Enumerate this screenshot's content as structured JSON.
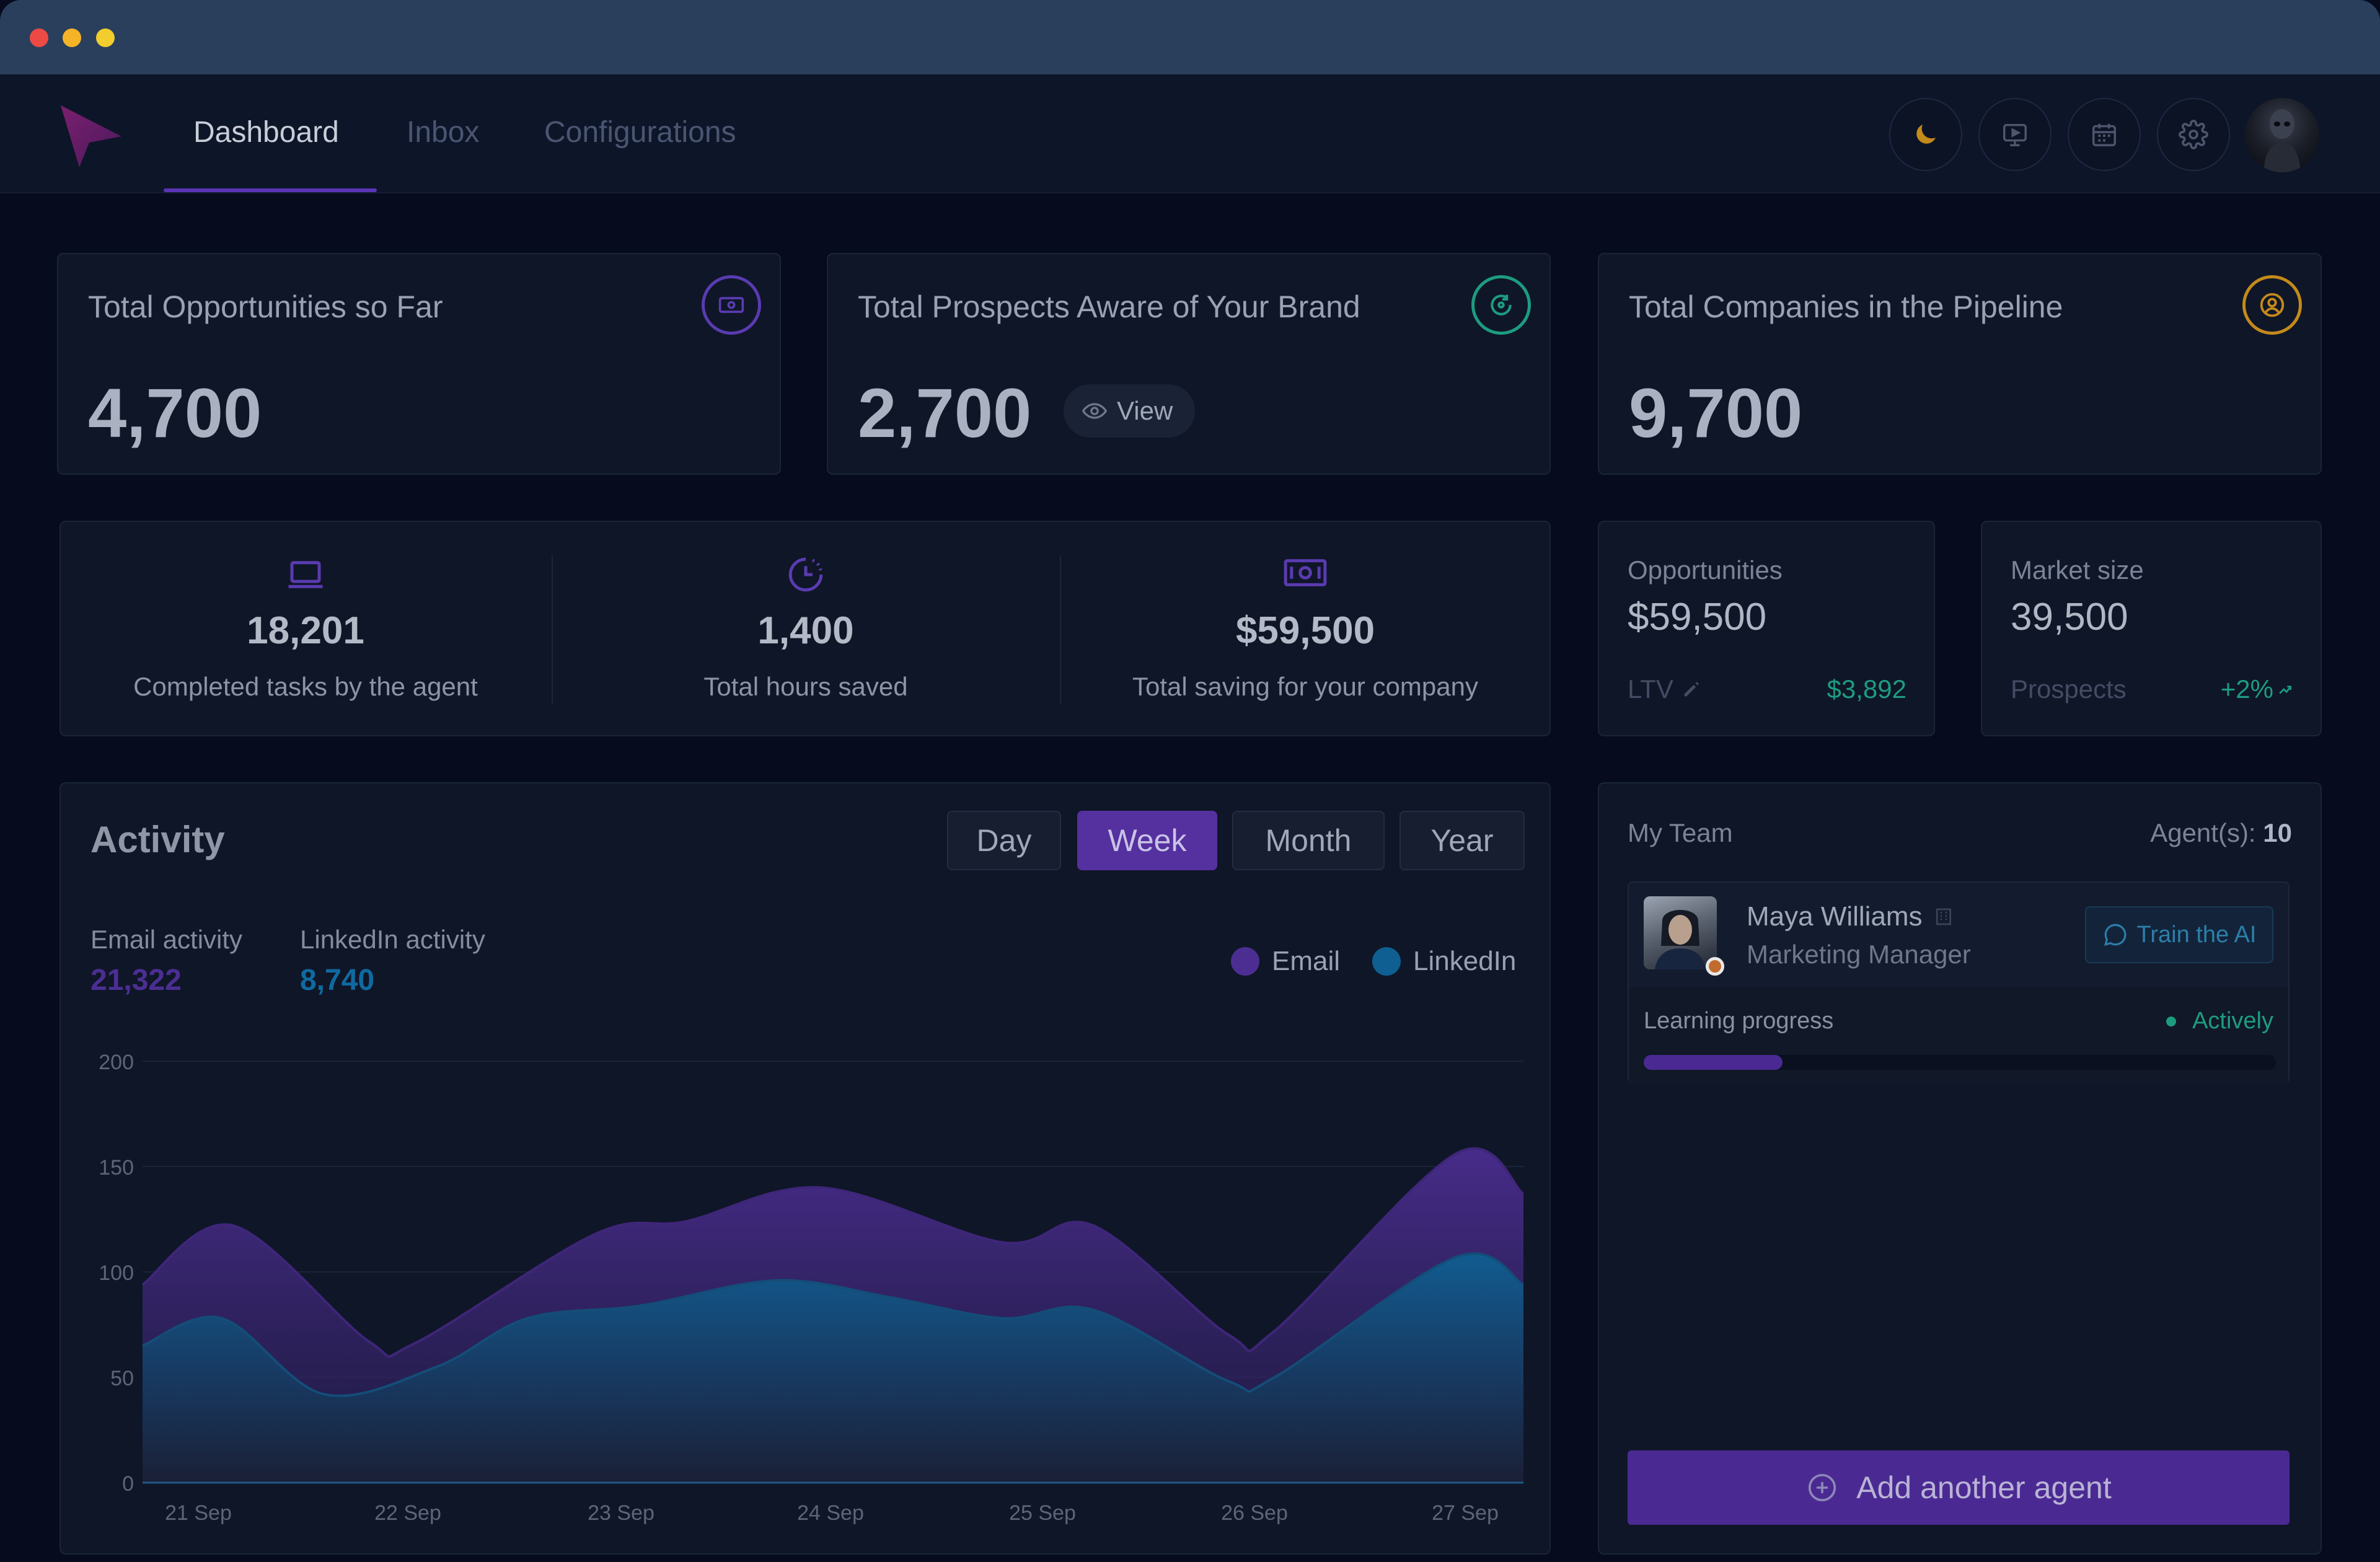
{
  "nav": {
    "tabs": [
      {
        "label": "Dashboard",
        "active": true
      },
      {
        "label": "Inbox",
        "active": false
      },
      {
        "label": "Configurations",
        "active": false
      }
    ],
    "icons": [
      "moon-icon",
      "monitor-play-icon",
      "calendar-icon",
      "gear-icon"
    ]
  },
  "kpis": [
    {
      "title": "Total Opportunities so Far",
      "value": "4,700",
      "icon": "cash-icon",
      "color": "#5a3bb0"
    },
    {
      "title": "Total Prospects Aware of Your Brand",
      "value": "2,700",
      "icon": "refresh-icon",
      "color": "#1d9c80",
      "action": "View"
    },
    {
      "title": "Total Companies in the Pipeline",
      "value": "9,700",
      "icon": "user-circle-icon",
      "color": "#c48a1a"
    }
  ],
  "stats": [
    {
      "icon": "laptop-icon",
      "value": "18,201",
      "label": "Completed tasks by the agent"
    },
    {
      "icon": "clock-icon",
      "value": "1,400",
      "label": "Total hours saved"
    },
    {
      "icon": "banknote-icon",
      "value": "$59,500",
      "label": "Total saving for your company"
    }
  ],
  "opportunities": {
    "label": "Opportunities",
    "value": "$59,500",
    "sub_label": "LTV",
    "sub_value": "$3,892"
  },
  "market": {
    "label": "Market size",
    "value": "39,500",
    "sub_label": "Prospects",
    "sub_value": "+2%"
  },
  "activity": {
    "title": "Activity",
    "periods": [
      {
        "label": "Day",
        "active": false
      },
      {
        "label": "Week",
        "active": true
      },
      {
        "label": "Month",
        "active": false
      },
      {
        "label": "Year",
        "active": false
      }
    ],
    "email_label": "Email activity",
    "email_value": "21,322",
    "linkedin_label": "LinkedIn activity",
    "linkedin_value": "8,740",
    "legend": [
      {
        "name": "Email",
        "color": "#4c2e93"
      },
      {
        "name": "LinkedIn",
        "color": "#0f5f92"
      }
    ]
  },
  "chart_data": {
    "type": "area",
    "x": [
      "21 Sep",
      "22 Sep",
      "23 Sep",
      "24 Sep",
      "25 Sep",
      "26 Sep",
      "27 Sep"
    ],
    "ylim": [
      0,
      200
    ],
    "yticks": [
      0,
      50,
      100,
      150,
      200
    ],
    "grid": true,
    "legend_position": "top-right",
    "series": [
      {
        "name": "Email",
        "color": "#4c2e93",
        "points": [
          [
            0,
            94
          ],
          [
            0.4,
            122
          ],
          [
            1,
            67
          ],
          [
            1.2,
            66
          ],
          [
            2,
            118
          ],
          [
            2.4,
            124
          ],
          [
            3,
            140
          ],
          [
            3.8,
            114
          ],
          [
            4.2,
            122
          ],
          [
            4.8,
            70
          ],
          [
            5,
            72
          ],
          [
            5.8,
            156
          ],
          [
            6.1,
            137
          ]
        ]
      },
      {
        "name": "LinkedIn",
        "color": "#0f5f92",
        "points": [
          [
            0,
            65
          ],
          [
            0.35,
            78
          ],
          [
            0.8,
            42
          ],
          [
            1.3,
            55
          ],
          [
            1.7,
            78
          ],
          [
            2.2,
            84
          ],
          [
            2.8,
            96
          ],
          [
            3.3,
            88
          ],
          [
            3.8,
            78
          ],
          [
            4.2,
            82
          ],
          [
            4.8,
            48
          ],
          [
            5,
            50
          ],
          [
            5.8,
            107
          ],
          [
            6.1,
            94
          ]
        ]
      }
    ]
  },
  "team": {
    "title": "My Team",
    "count_label": "Agent(s):",
    "count_value": "10",
    "agent": {
      "name": "Maya Williams",
      "role": "Marketing Manager",
      "train_label": "Train the AI",
      "learning_label": "Learning progress",
      "status": "Actively",
      "progress": 0.22
    },
    "add_label": "Add another agent"
  }
}
